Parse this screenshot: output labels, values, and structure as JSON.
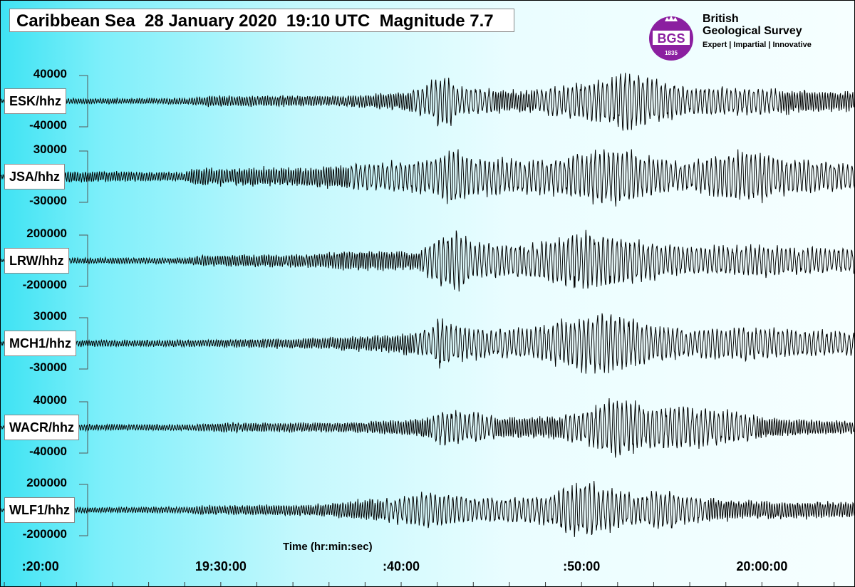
{
  "header": {
    "title": "Caribbean Sea  28 January 2020  19:10 UTC  Magnitude 7.7"
  },
  "logo": {
    "emblem_text": "BGS",
    "emblem_year": "1835",
    "line1": "British",
    "line2": "Geological Survey",
    "tagline": "Expert  |  Impartial  |  Innovative",
    "color": "#8b1fa0"
  },
  "colors": {
    "trace": "#000000",
    "background_left": "#3fe3f3",
    "background_right": "#f6ffff"
  },
  "chart_data": {
    "type": "line",
    "title": "Caribbean Sea  28 January 2020  19:10 UTC  Magnitude 7.7",
    "xlabel": "Time (hr:min:sec)",
    "x_ticks": [
      ":20:00",
      "19:30:00",
      ":40:00",
      ":50:00",
      "20:00:00"
    ],
    "x_tick_minutes": [
      20,
      30,
      40,
      50,
      60
    ],
    "x_range_minutes": [
      17.8,
      65.2
    ],
    "grid": false,
    "series": [
      {
        "name": "ESK/hhz",
        "scale_max": "40000",
        "scale_min": "-40000",
        "seed": 11,
        "envelope": [
          [
            17.8,
            0.06
          ],
          [
            19.5,
            0.1
          ],
          [
            21.5,
            0.09
          ],
          [
            28,
            0.1
          ],
          [
            29.5,
            0.18
          ],
          [
            37,
            0.17
          ],
          [
            38.5,
            0.25
          ],
          [
            40,
            0.3
          ],
          [
            41,
            0.45
          ],
          [
            42,
            0.85
          ],
          [
            42.6,
            0.9
          ],
          [
            43.2,
            0.45
          ],
          [
            47,
            0.35
          ],
          [
            48.5,
            0.5
          ],
          [
            50.5,
            0.65
          ],
          [
            51.5,
            0.75
          ],
          [
            52.3,
            1.0
          ],
          [
            54,
            0.75
          ],
          [
            55.5,
            0.5
          ],
          [
            59,
            0.45
          ],
          [
            61,
            0.4
          ],
          [
            63.5,
            0.35
          ],
          [
            65.2,
            0.3
          ]
        ]
      },
      {
        "name": "JSA/hhz",
        "scale_max": "30000",
        "scale_min": "-30000",
        "seed": 23,
        "envelope": [
          [
            17.8,
            0.06
          ],
          [
            19.5,
            0.22
          ],
          [
            21.5,
            0.18
          ],
          [
            28,
            0.15
          ],
          [
            28.5,
            0.28
          ],
          [
            35,
            0.32
          ],
          [
            38.5,
            0.45
          ],
          [
            41,
            0.55
          ],
          [
            42.5,
            0.8
          ],
          [
            43,
            0.9
          ],
          [
            44,
            0.6
          ],
          [
            47,
            0.55
          ],
          [
            49,
            0.65
          ],
          [
            51,
            0.85
          ],
          [
            52,
            1.0
          ],
          [
            53.5,
            0.65
          ],
          [
            56,
            0.45
          ],
          [
            58,
            0.75
          ],
          [
            59.5,
            0.85
          ],
          [
            61,
            0.6
          ],
          [
            63.5,
            0.5
          ],
          [
            65.2,
            0.4
          ]
        ]
      },
      {
        "name": "LRW/hhz",
        "scale_max": "200000",
        "scale_min": "-200000",
        "seed": 37,
        "envelope": [
          [
            17.8,
            0.05
          ],
          [
            19.5,
            0.12
          ],
          [
            21.5,
            0.1
          ],
          [
            28,
            0.1
          ],
          [
            29,
            0.18
          ],
          [
            35,
            0.22
          ],
          [
            37.5,
            0.35
          ],
          [
            41,
            0.3
          ],
          [
            42.3,
            0.9
          ],
          [
            43,
            1.0
          ],
          [
            44,
            0.6
          ],
          [
            47,
            0.55
          ],
          [
            48.5,
            0.75
          ],
          [
            50,
            1.0
          ],
          [
            51,
            0.95
          ],
          [
            52.5,
            0.75
          ],
          [
            55,
            0.5
          ],
          [
            58,
            0.45
          ],
          [
            60,
            0.55
          ],
          [
            62,
            0.45
          ],
          [
            65.2,
            0.4
          ]
        ]
      },
      {
        "name": "MCH1/hhz",
        "scale_max": "30000",
        "scale_min": "-30000",
        "seed": 53,
        "envelope": [
          [
            17.8,
            0.06
          ],
          [
            19.5,
            0.12
          ],
          [
            21.5,
            0.1
          ],
          [
            29,
            0.12
          ],
          [
            35,
            0.18
          ],
          [
            39,
            0.28
          ],
          [
            41.5,
            0.45
          ],
          [
            42,
            0.85
          ],
          [
            43,
            0.6
          ],
          [
            45,
            0.45
          ],
          [
            47,
            0.5
          ],
          [
            49,
            0.75
          ],
          [
            51,
            1.0
          ],
          [
            52,
            0.9
          ],
          [
            54,
            0.6
          ],
          [
            56,
            0.45
          ],
          [
            59,
            0.55
          ],
          [
            61,
            0.45
          ],
          [
            65.2,
            0.4
          ]
        ]
      },
      {
        "name": "WACR/hhz",
        "scale_max": "40000",
        "scale_min": "-40000",
        "seed": 71,
        "envelope": [
          [
            17.8,
            0.05
          ],
          [
            19.5,
            0.12
          ],
          [
            21.5,
            0.1
          ],
          [
            28,
            0.1
          ],
          [
            30,
            0.15
          ],
          [
            36,
            0.15
          ],
          [
            39,
            0.22
          ],
          [
            41.5,
            0.35
          ],
          [
            42.3,
            0.6
          ],
          [
            43.5,
            0.5
          ],
          [
            46,
            0.35
          ],
          [
            49,
            0.4
          ],
          [
            50,
            0.55
          ],
          [
            51.5,
            0.85
          ],
          [
            52.3,
            1.0
          ],
          [
            53.5,
            0.7
          ],
          [
            55,
            0.75
          ],
          [
            57,
            0.6
          ],
          [
            59,
            0.45
          ],
          [
            61,
            0.3
          ],
          [
            65.2,
            0.2
          ]
        ]
      },
      {
        "name": "WLF1/hhz",
        "scale_max": "200000",
        "scale_min": "-200000",
        "seed": 89,
        "envelope": [
          [
            17.8,
            0.05
          ],
          [
            19.5,
            0.1
          ],
          [
            21.5,
            0.09
          ],
          [
            28,
            0.1
          ],
          [
            29,
            0.15
          ],
          [
            35,
            0.18
          ],
          [
            38,
            0.35
          ],
          [
            40,
            0.45
          ],
          [
            41.5,
            0.6
          ],
          [
            42.5,
            0.5
          ],
          [
            45,
            0.4
          ],
          [
            48,
            0.45
          ],
          [
            49.5,
            0.85
          ],
          [
            50.5,
            1.0
          ],
          [
            51.5,
            0.75
          ],
          [
            53,
            0.5
          ],
          [
            54.5,
            0.65
          ],
          [
            56,
            0.45
          ],
          [
            58,
            0.35
          ],
          [
            60,
            0.3
          ],
          [
            65.2,
            0.25
          ]
        ]
      }
    ]
  }
}
